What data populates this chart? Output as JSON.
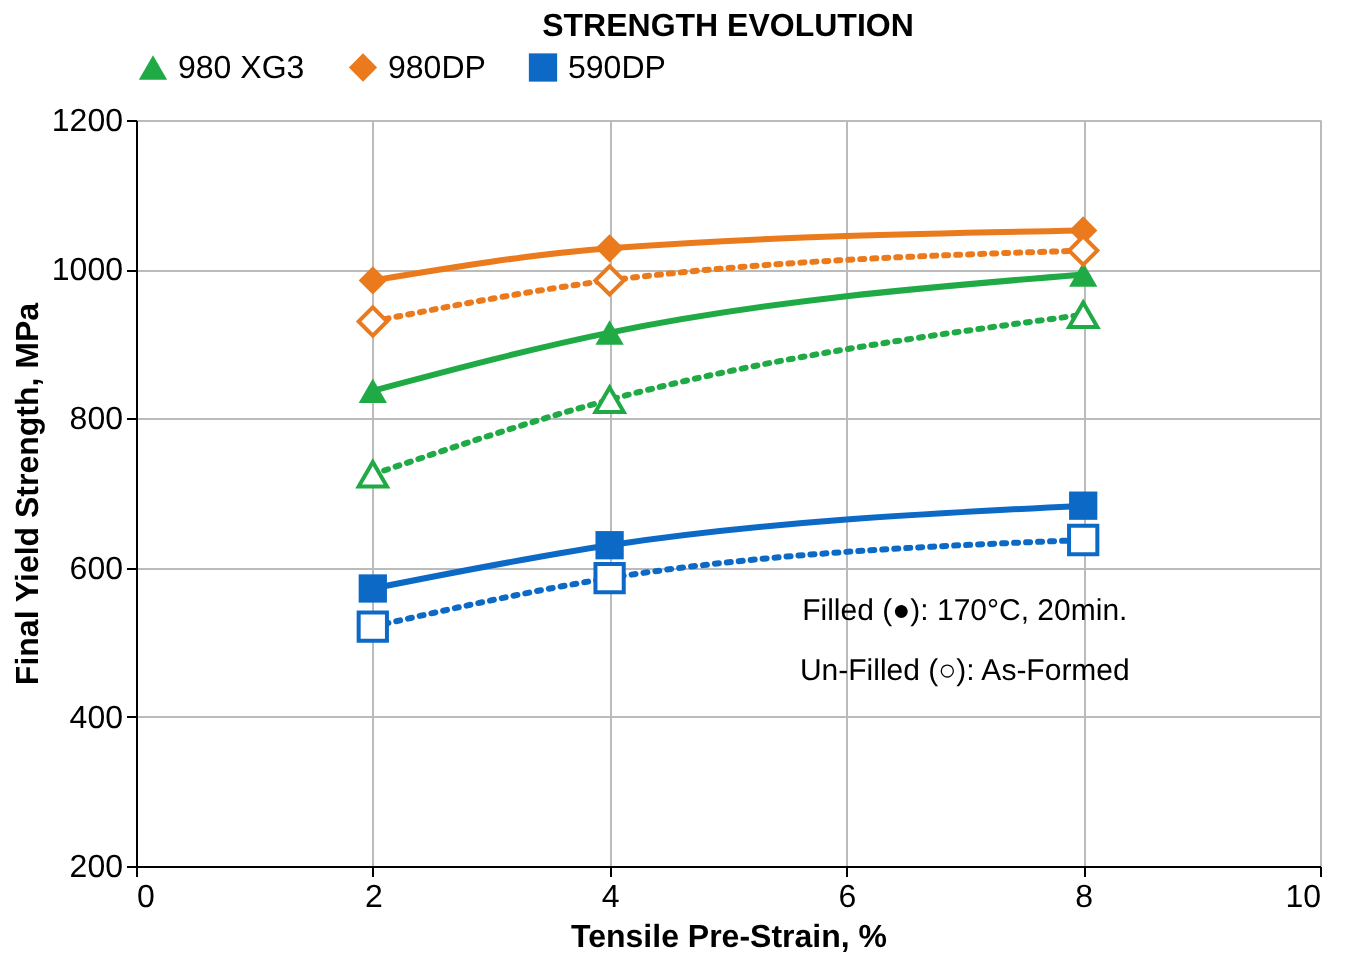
{
  "chart_data": {
    "type": "line",
    "title": "STRENGTH EVOLUTION",
    "xlabel": "Tensile Pre-Strain, %",
    "ylabel": "Final Yield Strength, MPa",
    "x": [
      2,
      4,
      8
    ],
    "series": [
      {
        "name": "980 XG3",
        "color": "#1faa45",
        "values": [
          837,
          915,
          993
        ],
        "marker": "triangle",
        "line_style": "solid"
      },
      {
        "name": "980DP",
        "color": "#ea7a1c",
        "values": [
          985,
          1028,
          1052
        ],
        "marker": "diamond",
        "line_style": "solid"
      },
      {
        "name": "590DP",
        "color": "#0c6ac6",
        "values": [
          572,
          630,
          683
        ],
        "marker": "square",
        "line_style": "solid"
      },
      {
        "color": "#1faa45",
        "values": [
          725,
          825,
          939
        ],
        "marker": "triangle",
        "line_style": "dotted"
      },
      {
        "color": "#ea7a1c",
        "values": [
          930,
          985,
          1025
        ],
        "marker": "diamond",
        "line_style": "dotted"
      },
      {
        "color": "#0c6ac6",
        "values": [
          521,
          586,
          637
        ],
        "marker": "square",
        "line_style": "dotted"
      }
    ],
    "xlim": [
      0,
      10
    ],
    "xticks": [
      0,
      2,
      4,
      6,
      8,
      10
    ],
    "ylim": [
      200,
      1200
    ],
    "yticks": [
      200,
      400,
      600,
      800,
      1000,
      1200
    ],
    "grid": true,
    "legend": "top",
    "annotations": [
      "Filled (●): 170°C, 20min.",
      "Un-Filled (○): As-Formed"
    ]
  }
}
